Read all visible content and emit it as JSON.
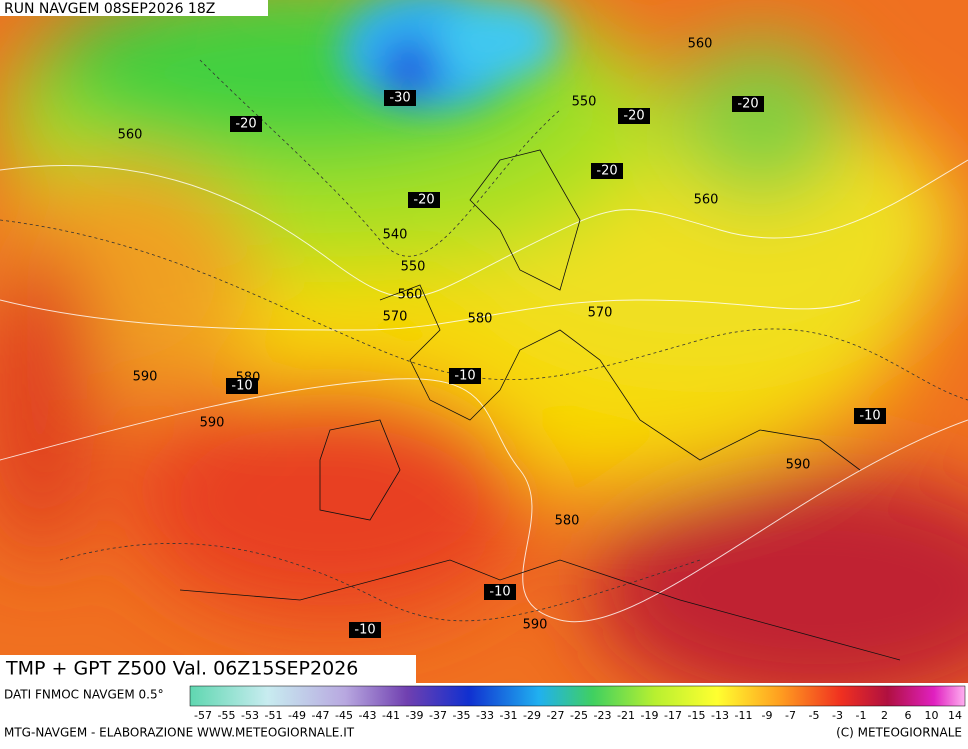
{
  "header": {
    "run": "RUN NAVGEM 08SEP2026 18Z"
  },
  "map": {
    "title": "TMP + GPT Z500 Val. 06Z15SEP2026",
    "contour_labels": [
      "-30",
      "550",
      "-20",
      "-20",
      "560",
      "-20",
      "560",
      "-20",
      "-20",
      "560",
      "540",
      "550",
      "560",
      "570",
      "580",
      "570",
      "590",
      "580",
      "-10",
      "-10",
      "590",
      "-10",
      "590",
      "580",
      "-10",
      "590",
      "-10"
    ]
  },
  "colorbar": {
    "source": "DATI FNMOC NAVGEM 0.5°",
    "ticks": [
      "-57",
      "-55",
      "-53",
      "-51",
      "-49",
      "-47",
      "-45",
      "-43",
      "-41",
      "-39",
      "-37",
      "-35",
      "-33",
      "-31",
      "-29",
      "-27",
      "-25",
      "-23",
      "-21",
      "-19",
      "-17",
      "-15",
      "-13",
      "-11",
      "-9",
      "-7",
      "-5",
      "-3",
      "-1",
      "2",
      "6",
      "10",
      "14"
    ]
  },
  "footer": {
    "credit": "MTG-NAVGEM - ELABORAZIONE WWW.METEOGIORNALE.IT",
    "copyright": "(C) METEOGIORNALE"
  }
}
